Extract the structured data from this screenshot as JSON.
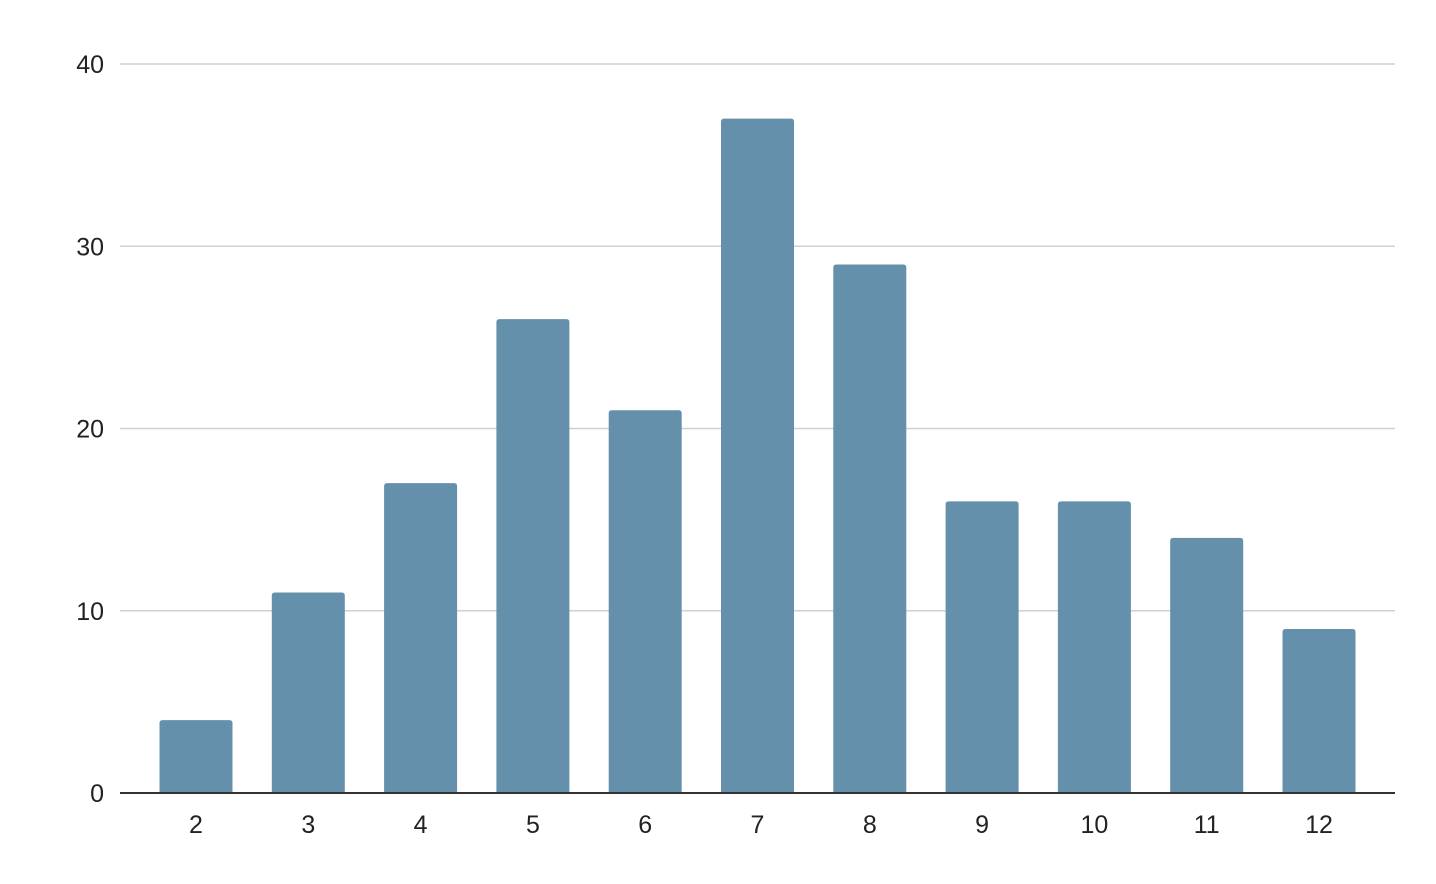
{
  "chart_data": {
    "type": "bar",
    "title": "",
    "xlabel": "",
    "ylabel": "",
    "categories": [
      "2",
      "3",
      "4",
      "5",
      "6",
      "7",
      "8",
      "9",
      "10",
      "11",
      "12"
    ],
    "values": [
      4,
      11,
      17,
      26,
      21,
      37,
      29,
      16,
      16,
      14,
      9
    ],
    "ylim": [
      0,
      40
    ],
    "yticks": [
      "0",
      "10",
      "20",
      "30",
      "40"
    ],
    "grid": true,
    "legend": "none",
    "colors": {
      "bar": "#6590ab",
      "grid": "#d0d0d0",
      "axis": "#333333"
    }
  }
}
